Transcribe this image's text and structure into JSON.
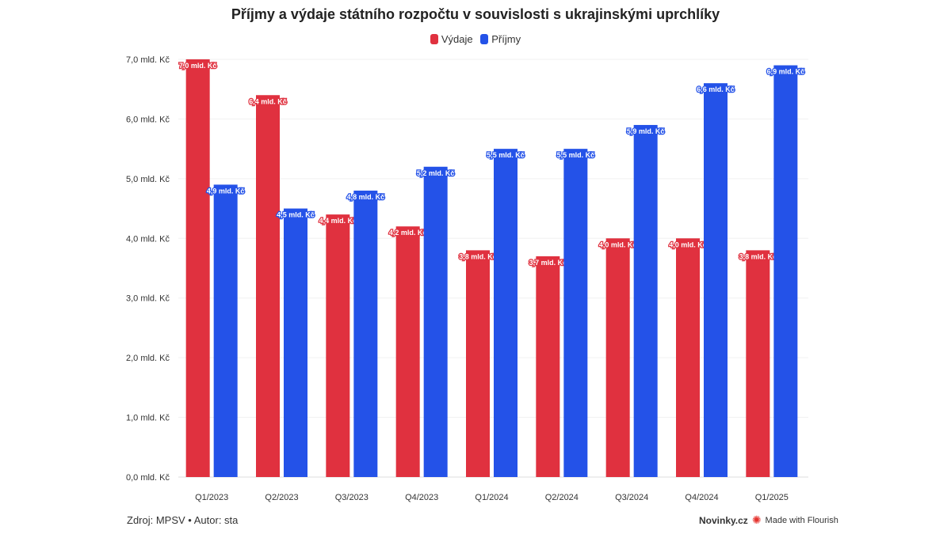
{
  "chart_data": {
    "type": "bar",
    "title": "Příjmy a výdaje státního rozpočtu v souvislosti s ukrajinskými uprchlíky",
    "xlabel": "",
    "ylabel": "",
    "categories": [
      "Q1/2023",
      "Q2/2023",
      "Q3/2023",
      "Q4/2023",
      "Q1/2024",
      "Q2/2024",
      "Q3/2024",
      "Q4/2024",
      "Q1/2025"
    ],
    "series": [
      {
        "name": "Výdaje",
        "color": "#e0313f",
        "values": [
          7.0,
          6.4,
          4.4,
          4.2,
          3.8,
          3.7,
          4.0,
          4.0,
          3.8
        ]
      },
      {
        "name": "Příjmy",
        "color": "#2452e8",
        "values": [
          4.9,
          4.5,
          4.8,
          5.2,
          5.5,
          5.5,
          5.9,
          6.6,
          6.9
        ]
      }
    ],
    "ylim": [
      0,
      7
    ],
    "yticks": [
      0,
      1,
      2,
      3,
      4,
      5,
      6,
      7
    ],
    "ytick_labels": [
      "0,0 mld. Kč",
      "1,0 mld. Kč",
      "2,0 mld. Kč",
      "3,0 mld. Kč",
      "4,0 mld. Kč",
      "5,0 mld. Kč",
      "6,0 mld. Kč",
      "7,0 mld. Kč"
    ],
    "value_label_suffix": " mld. Kč",
    "grid": true,
    "legend_position": "top-center"
  },
  "footer": {
    "source": "Zdroj: MPSV • Autor: sta",
    "brand": "Novinky.cz",
    "made_with": "Made with Flourish"
  }
}
